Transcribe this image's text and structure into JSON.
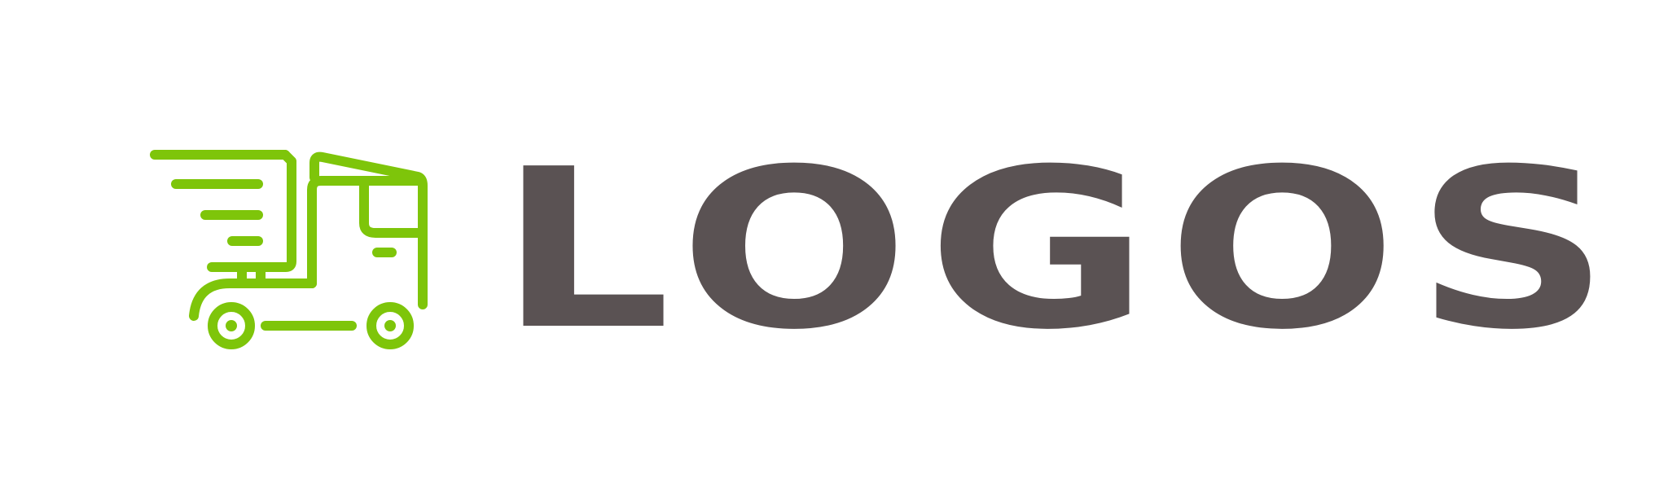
{
  "brand": {
    "wordmark": "LOGOS",
    "icon": "delivery-truck-icon",
    "colors": {
      "icon_green": "#7ec50a",
      "text_gray": "#5a5253",
      "background": "#ffffff"
    }
  }
}
